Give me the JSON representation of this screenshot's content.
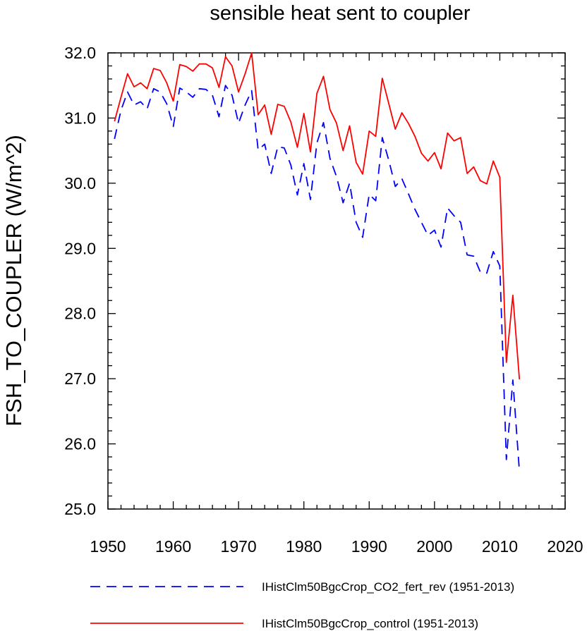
{
  "chart_data": {
    "type": "line",
    "title": "sensible heat sent to coupler",
    "xlabel": "",
    "ylabel": "FSH_TO_COUPLER  (W/m^2)",
    "xlim": [
      1950,
      2020
    ],
    "ylim": [
      25.0,
      32.0
    ],
    "xticks": [
      1950,
      1960,
      1970,
      1980,
      1990,
      2000,
      2010,
      2020
    ],
    "xtick_labels": [
      "1950",
      "1960",
      "1970",
      "1980",
      "1990",
      "2000",
      "2010",
      "2020"
    ],
    "yticks": [
      25.0,
      26.0,
      27.0,
      28.0,
      29.0,
      30.0,
      31.0,
      32.0
    ],
    "ytick_labels": [
      "25.0",
      "26.0",
      "27.0",
      "28.0",
      "29.0",
      "30.0",
      "31.0",
      "32.0"
    ],
    "grid": false,
    "legend_position": "bottom",
    "x": [
      1951,
      1952,
      1953,
      1954,
      1955,
      1956,
      1957,
      1958,
      1959,
      1960,
      1961,
      1962,
      1963,
      1964,
      1965,
      1966,
      1967,
      1968,
      1969,
      1970,
      1971,
      1972,
      1973,
      1974,
      1975,
      1976,
      1977,
      1978,
      1979,
      1980,
      1981,
      1982,
      1983,
      1984,
      1985,
      1986,
      1987,
      1988,
      1989,
      1990,
      1991,
      1992,
      1993,
      1994,
      1995,
      1996,
      1997,
      1998,
      1999,
      2000,
      2001,
      2002,
      2003,
      2004,
      2005,
      2006,
      2007,
      2008,
      2009,
      2010,
      2011,
      2012,
      2013
    ],
    "series": [
      {
        "name": "IHistClm50BgcCrop_CO2_fert_rev (1951-2013)",
        "color": "#0000ff",
        "dash": "dashed",
        "values": [
          30.68,
          31.12,
          31.4,
          31.2,
          31.25,
          31.14,
          31.45,
          31.4,
          31.22,
          30.87,
          31.46,
          31.4,
          31.32,
          31.45,
          31.44,
          31.35,
          31.02,
          31.5,
          31.35,
          30.92,
          31.2,
          31.42,
          30.51,
          30.6,
          30.15,
          30.56,
          30.54,
          30.28,
          29.82,
          30.3,
          29.75,
          30.62,
          30.93,
          30.38,
          30.1,
          29.7,
          30.0,
          29.4,
          29.17,
          29.83,
          29.73,
          30.7,
          30.35,
          29.95,
          30.07,
          29.84,
          29.6,
          29.4,
          29.2,
          29.28,
          29.02,
          29.62,
          29.5,
          29.4,
          28.9,
          28.88,
          28.64,
          28.62,
          28.95,
          28.73,
          25.76,
          26.98,
          25.58
        ]
      },
      {
        "name": "IHistClm50BgcCrop_control (1951-2013)",
        "color": "#ff0000",
        "dash": "solid",
        "values": [
          30.95,
          31.32,
          31.68,
          31.48,
          31.54,
          31.45,
          31.76,
          31.73,
          31.54,
          31.26,
          31.82,
          31.79,
          31.72,
          31.83,
          31.83,
          31.77,
          31.47,
          31.94,
          31.8,
          31.4,
          31.68,
          32.0,
          31.05,
          31.2,
          30.75,
          31.21,
          31.18,
          30.94,
          30.55,
          31.07,
          30.48,
          31.38,
          31.64,
          31.13,
          30.92,
          30.5,
          30.88,
          30.32,
          30.14,
          30.8,
          30.72,
          31.61,
          31.22,
          30.83,
          31.08,
          30.92,
          30.72,
          30.46,
          30.34,
          30.47,
          30.22,
          30.77,
          30.65,
          30.7,
          30.15,
          30.25,
          30.04,
          29.99,
          30.34,
          30.09,
          27.25,
          28.28,
          26.99
        ]
      }
    ]
  }
}
